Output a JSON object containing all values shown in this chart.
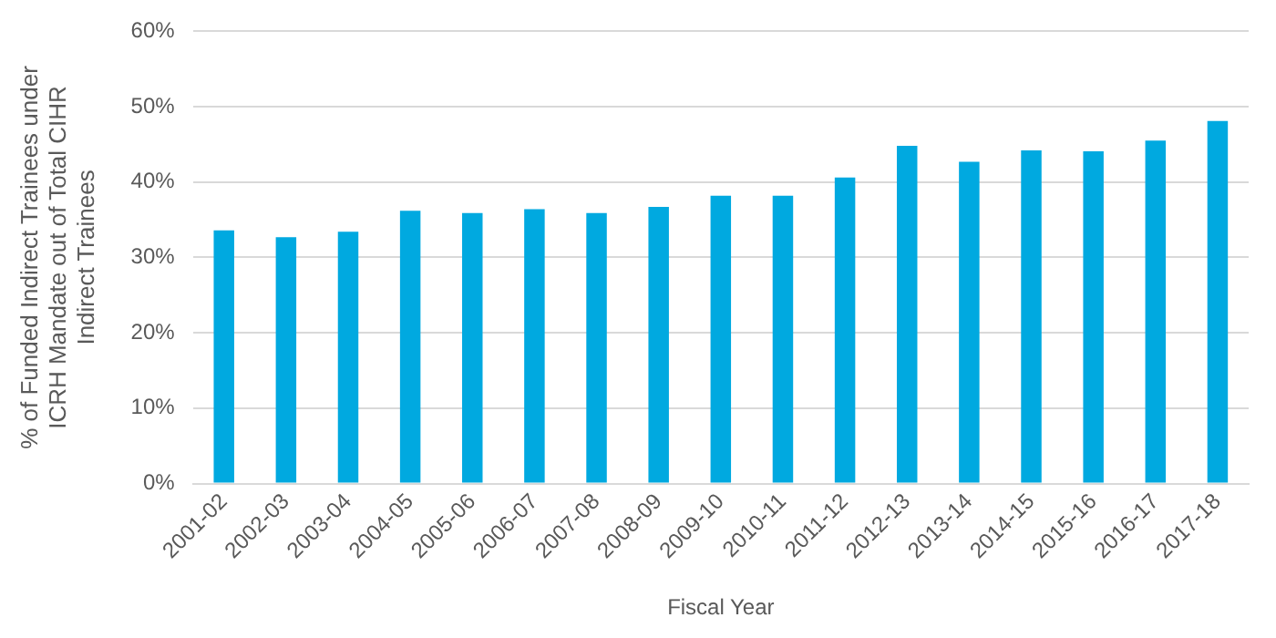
{
  "chart_data": {
    "type": "bar",
    "xlabel": "Fiscal Year",
    "ylabel": "% of Funded Indirect Trainees under ICRH Mandate out of Total CIHR Indirect Trainees",
    "categories": [
      "2001-02",
      "2002-03",
      "2003-04",
      "2004-05",
      "2005-06",
      "2006-07",
      "2007-08",
      "2008-09",
      "2009-10",
      "2010-11",
      "2011-12",
      "2012-13",
      "2013-14",
      "2014-15",
      "2015-16",
      "2016-17",
      "2017-18"
    ],
    "values": [
      33.6,
      32.7,
      33.4,
      36.2,
      35.9,
      36.4,
      35.9,
      36.7,
      38.2,
      38.2,
      40.6,
      44.8,
      42.7,
      44.2,
      44.1,
      45.5,
      48.1
    ],
    "color": "#00a9e0",
    "ylim": [
      0,
      60
    ],
    "yticks": [
      {
        "value": 0,
        "label": "0%"
      },
      {
        "value": 10,
        "label": "10%"
      },
      {
        "value": 20,
        "label": "20%"
      },
      {
        "value": 30,
        "label": "30%"
      },
      {
        "value": 40,
        "label": "40%"
      },
      {
        "value": 50,
        "label": "50%"
      },
      {
        "value": 60,
        "label": "60%"
      }
    ],
    "grid": "y",
    "legend": false
  }
}
